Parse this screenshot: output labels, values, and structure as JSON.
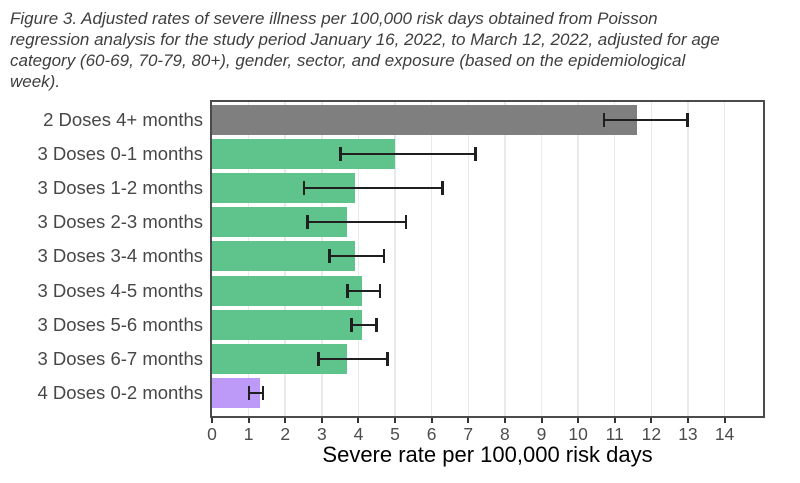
{
  "figure_caption": {
    "lines": [
      "Figure 3.  Adjusted rates of severe illness per 100,000 risk days obtained from Poisson",
      "regression analysis for the study period January 16, 2022, to March 12, 2022, adjusted for age",
      "category (60-69, 70-79, 80+), gender, sector, and exposure (based on the epidemiological",
      "week)."
    ]
  },
  "chart_data": {
    "type": "bar",
    "orientation": "horizontal",
    "xlabel": "Severe rate per 100,000 risk days",
    "ylabel": "",
    "xlim": [
      0,
      15
    ],
    "x_ticks": [
      0,
      1,
      2,
      3,
      4,
      5,
      6,
      7,
      8,
      9,
      10,
      11,
      12,
      13,
      14
    ],
    "grid": "vertical-major-only",
    "legend": "none",
    "categories": [
      "2 Doses 4+ months",
      "3 Doses 0-1 months",
      "3 Doses 1-2 months",
      "3 Doses 2-3 months",
      "3 Doses 3-4 months",
      "3 Doses 4-5 months",
      "3 Doses 5-6 months",
      "3 Doses 6-7 months",
      "4 Doses 0-2 months"
    ],
    "series": [
      {
        "name": "Adjusted severe rate per 100,000 risk days",
        "values": [
          11.6,
          5.0,
          3.9,
          3.7,
          3.9,
          4.1,
          4.1,
          3.7,
          1.3
        ],
        "ci_low": [
          10.7,
          3.5,
          2.5,
          2.6,
          3.2,
          3.7,
          3.8,
          2.9,
          1.0
        ],
        "ci_high": [
          13.0,
          7.2,
          6.3,
          5.3,
          4.7,
          4.6,
          4.5,
          4.8,
          1.4
        ]
      }
    ],
    "bar_color_keys": [
      "gray",
      "green",
      "green",
      "green",
      "green",
      "green",
      "green",
      "green",
      "purple"
    ]
  },
  "colors": {
    "gray": "#7f7f7f",
    "green": "#5fc48c",
    "purple": "#bd9af7",
    "gridline": "#e9e9e9",
    "panel_border": "#4b4b4b",
    "errorbar": "#1f1f1f",
    "tick_label": "#4d4d4d",
    "y_label": "#474747",
    "caption_text": "#3e3e3e",
    "axis_title": "#000000"
  }
}
